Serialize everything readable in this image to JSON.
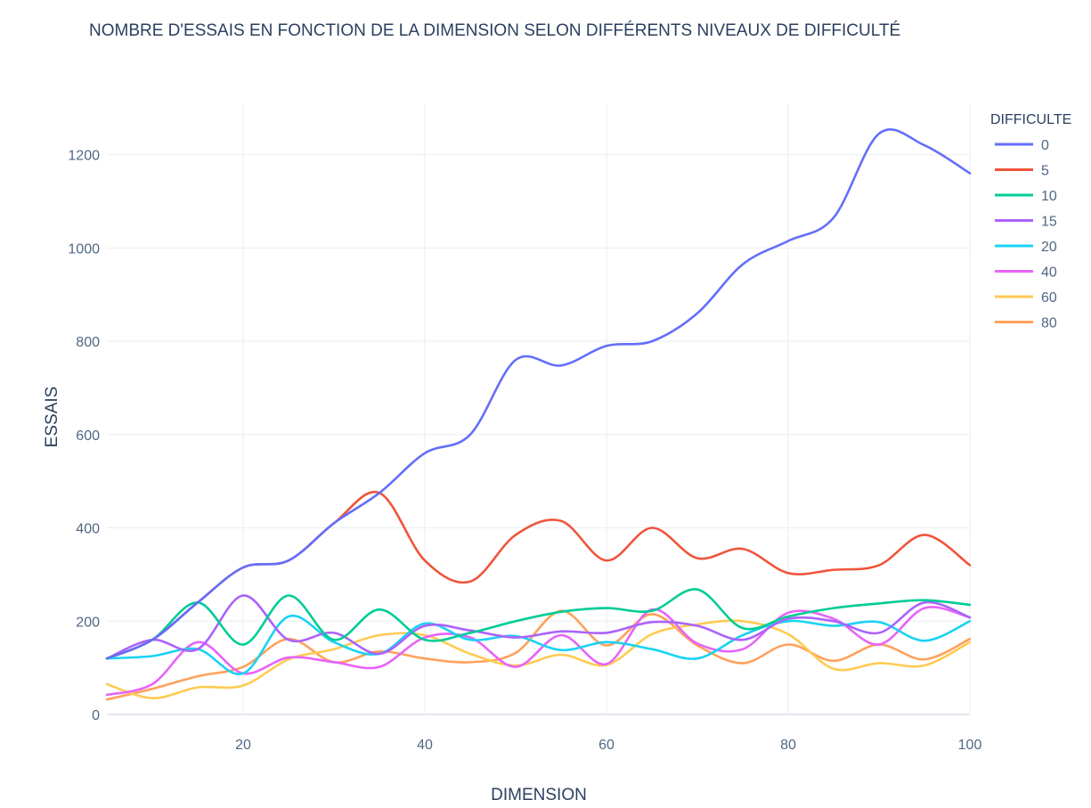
{
  "chart_data": {
    "type": "line",
    "title": "NOMBRE D'ESSAIS EN FONCTION DE LA DIMENSION SELON DIFFÉRENTS NIVEAUX DE DIFFICULTÉ",
    "xlabel": "DIMENSION",
    "ylabel": "ESSAIS",
    "xlim": [
      5,
      100
    ],
    "ylim": [
      0,
      1310
    ],
    "xticks": [
      20,
      40,
      60,
      80,
      100
    ],
    "yticks": [
      0,
      200,
      400,
      600,
      800,
      1000,
      1200
    ],
    "grid": true,
    "legend_title": "DIFFICULTE",
    "legend_position": "right",
    "x": [
      5,
      10,
      15,
      20,
      25,
      30,
      35,
      40,
      45,
      50,
      55,
      60,
      65,
      70,
      75,
      80,
      85,
      90,
      95,
      100
    ],
    "series": [
      {
        "name": "0",
        "color": "#636efa",
        "values": [
          120,
          160,
          240,
          315,
          330,
          410,
          475,
          560,
          600,
          760,
          748,
          790,
          800,
          860,
          965,
          1015,
          1065,
          1245,
          1220,
          1160
        ]
      },
      {
        "name": "5",
        "color": "#ef553b",
        "values": [
          120,
          160,
          240,
          315,
          330,
          410,
          475,
          330,
          285,
          385,
          415,
          330,
          400,
          335,
          355,
          303,
          310,
          320,
          385,
          320
        ]
      },
      {
        "name": "10",
        "color": "#00cc96",
        "values": [
          120,
          160,
          240,
          150,
          255,
          160,
          225,
          160,
          175,
          200,
          220,
          228,
          222,
          268,
          185,
          210,
          228,
          238,
          245,
          235
        ]
      },
      {
        "name": "15",
        "color": "#ab63fa",
        "values": [
          120,
          160,
          140,
          255,
          160,
          175,
          130,
          190,
          180,
          165,
          178,
          175,
          198,
          190,
          160,
          205,
          200,
          175,
          240,
          208
        ]
      },
      {
        "name": "20",
        "color": "#19d3f3",
        "values": [
          120,
          125,
          140,
          88,
          210,
          155,
          130,
          195,
          160,
          168,
          138,
          155,
          140,
          120,
          170,
          200,
          190,
          198,
          158,
          200
        ]
      },
      {
        "name": "40",
        "color": "#e763fa",
        "values": [
          42,
          65,
          155,
          88,
          122,
          112,
          102,
          165,
          165,
          102,
          170,
          108,
          225,
          152,
          140,
          218,
          205,
          150,
          228,
          208
        ]
      },
      {
        "name": "60",
        "color": "#fecb52",
        "values": [
          65,
          35,
          58,
          62,
          118,
          140,
          170,
          170,
          130,
          105,
          128,
          106,
          172,
          193,
          200,
          172,
          98,
          110,
          105,
          155
        ]
      },
      {
        "name": "80",
        "color": "#ffa15a",
        "values": [
          32,
          55,
          82,
          102,
          162,
          112,
          135,
          120,
          112,
          132,
          222,
          148,
          215,
          148,
          110,
          150,
          115,
          150,
          118,
          162
        ]
      }
    ]
  }
}
